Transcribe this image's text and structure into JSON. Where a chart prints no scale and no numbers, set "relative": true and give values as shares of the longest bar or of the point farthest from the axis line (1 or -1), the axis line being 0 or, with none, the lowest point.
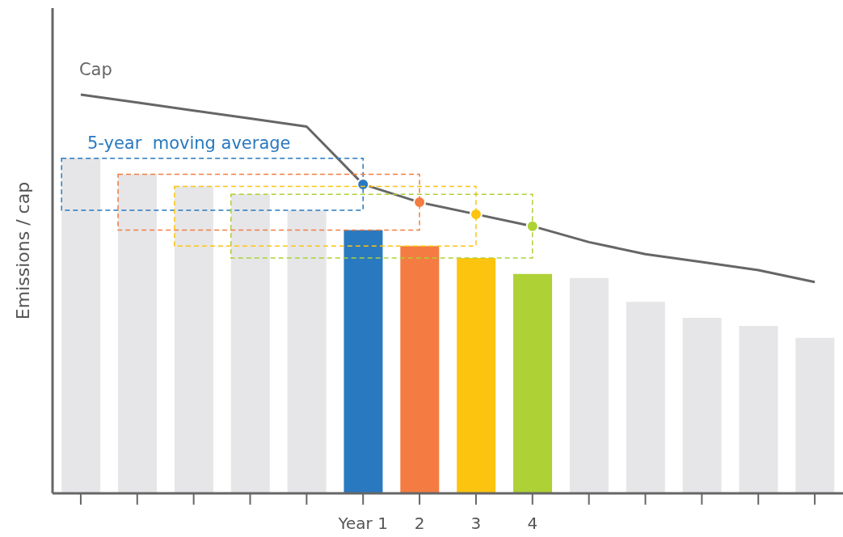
{
  "chart_data": {
    "type": "bar",
    "relative": true,
    "ylabel": "Emissions / cap",
    "categories": [
      null,
      null,
      null,
      null,
      null,
      "Year 1",
      "2",
      "3",
      "4",
      null,
      null,
      null,
      null,
      null
    ],
    "series": [
      {
        "colors": [
          "#e6e6e8",
          "#e6e6e8",
          "#e6e6e8",
          "#e6e6e8",
          "#e6e6e8",
          "#2979c0",
          "#f47c42",
          "#fdc40f",
          "#aed135",
          "#e6e6e8",
          "#e6e6e8",
          "#e6e6e8",
          "#e6e6e8",
          "#e6e6e8"
        ],
        "values": [
          0.84,
          0.8,
          0.77,
          0.75,
          0.71,
          0.66,
          0.62,
          0.59,
          0.55,
          0.54,
          0.48,
          0.44,
          0.42,
          0.39
        ]
      },
      {
        "type": "line",
        "marker": "none",
        "name": "Cap",
        "color": "#666666",
        "values": [
          1,
          0.98,
          0.96,
          0.94,
          0.92,
          0.775,
          0.73,
          0.7,
          0.67,
          0.63,
          0.6,
          0.58,
          0.56,
          0.53
        ]
      },
      {
        "type": "scatter",
        "marker": "circle",
        "name": "5-year  moving average",
        "color": "#2979c0",
        "colors": [
          null,
          null,
          null,
          null,
          null,
          "#2979c0",
          "#f47c42",
          "#fdc40f",
          "#aed135",
          null,
          null,
          null,
          null,
          null
        ],
        "values": [
          null,
          null,
          null,
          null,
          null,
          0.775,
          0.73,
          0.7,
          0.67,
          null,
          null,
          null,
          null,
          null
        ]
      }
    ],
    "grid": false
  }
}
